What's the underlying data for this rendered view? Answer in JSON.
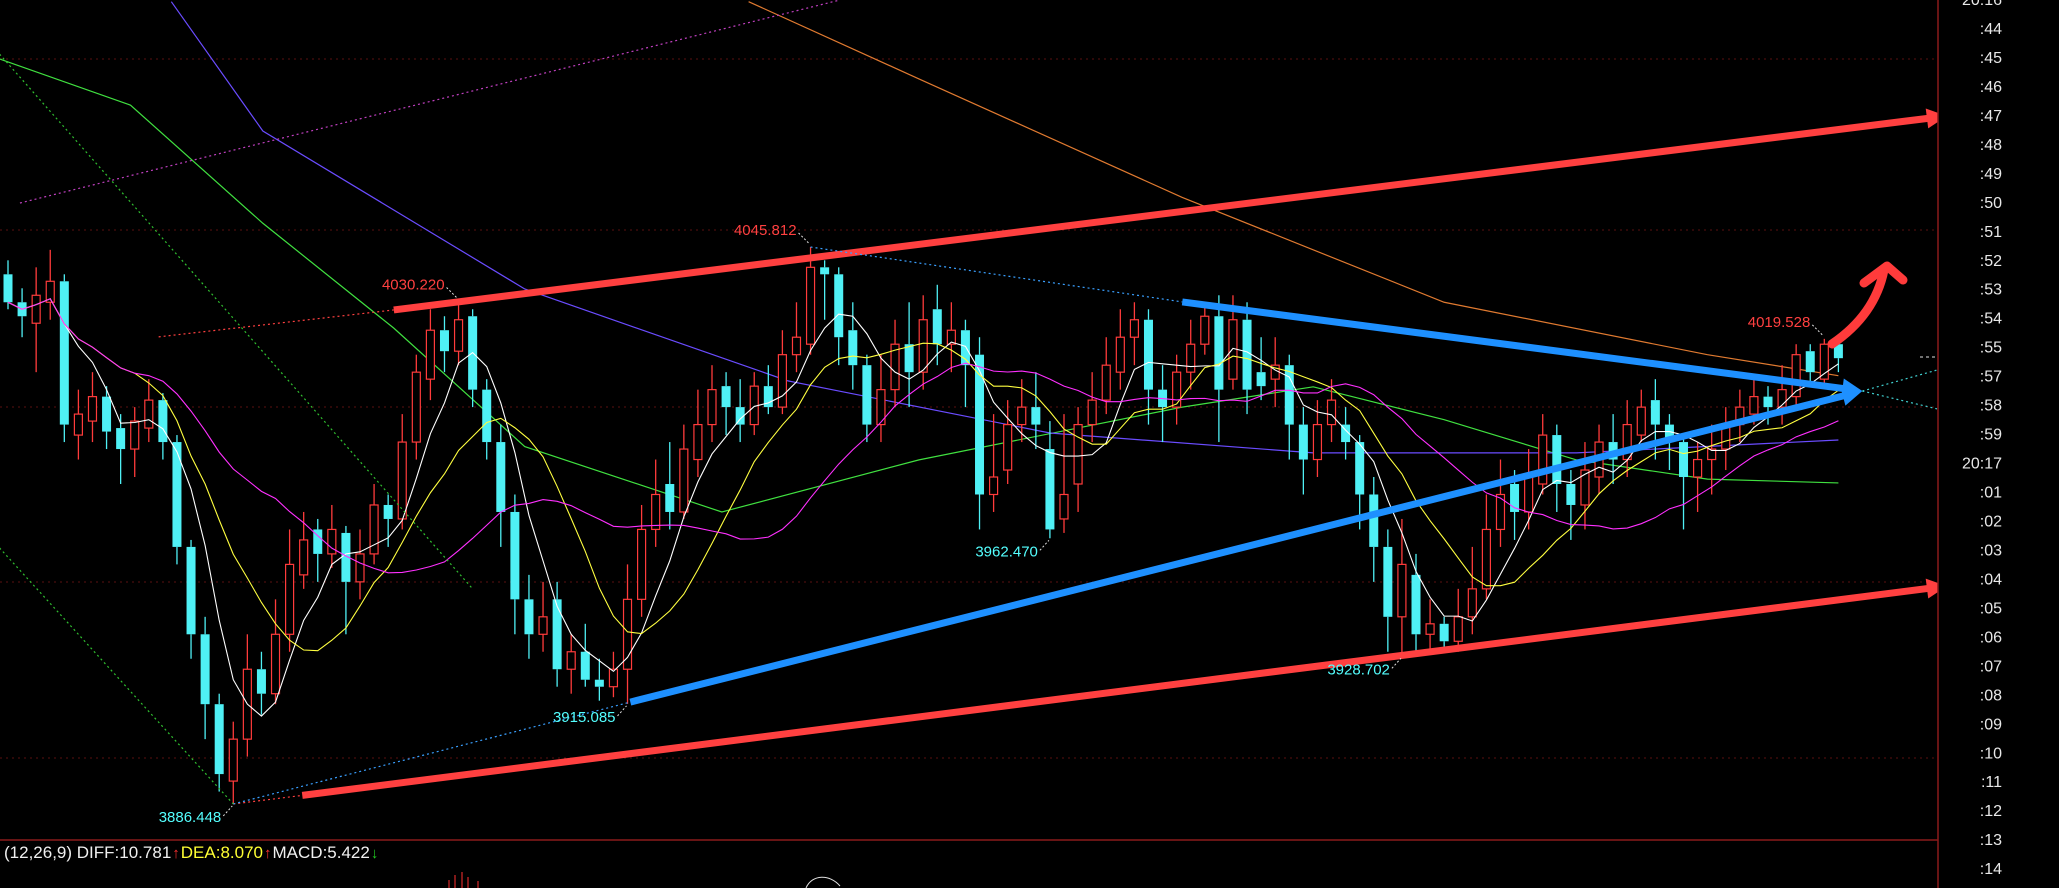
{
  "chart_data": {
    "type": "candlestick",
    "up_color": "#ff3b3b",
    "down_color": "#4ff0f5",
    "candles": [
      [
        4038,
        4042,
        4028,
        4030
      ],
      [
        4030,
        4034,
        4020,
        4026
      ],
      [
        4024,
        4040,
        4010,
        4032
      ],
      [
        4030,
        4045,
        4025,
        4036
      ],
      [
        4036,
        4038,
        3990,
        3995
      ],
      [
        3992,
        4005,
        3985,
        3998
      ],
      [
        3996,
        4010,
        3990,
        4003
      ],
      [
        4003,
        4006,
        3988,
        3993
      ],
      [
        3994,
        3998,
        3978,
        3988
      ],
      [
        3988,
        4000,
        3980,
        3996
      ],
      [
        3994,
        4008,
        3990,
        4002
      ],
      [
        4002,
        4004,
        3985,
        3990
      ],
      [
        3990,
        3992,
        3955,
        3960
      ],
      [
        3960,
        3962,
        3928,
        3935
      ],
      [
        3935,
        3940,
        3905,
        3915
      ],
      [
        3915,
        3918,
        3890,
        3895
      ],
      [
        3893,
        3910,
        3886.448,
        3905
      ],
      [
        3905,
        3935,
        3900,
        3925
      ],
      [
        3925,
        3930,
        3912,
        3918
      ],
      [
        3918,
        3945,
        3915,
        3935
      ],
      [
        3935,
        3965,
        3930,
        3955
      ],
      [
        3952,
        3970,
        3948,
        3962
      ],
      [
        3965,
        3968,
        3950,
        3958
      ],
      [
        3958,
        3972,
        3954,
        3965
      ],
      [
        3964,
        3966,
        3935,
        3950
      ],
      [
        3950,
        3965,
        3945,
        3958
      ],
      [
        3958,
        3978,
        3955,
        3972
      ],
      [
        3972,
        3975,
        3960,
        3968
      ],
      [
        3968,
        3998,
        3965,
        3990
      ],
      [
        3990,
        4015,
        3985,
        4010
      ],
      [
        4008,
        4028,
        4002,
        4022
      ],
      [
        4022,
        4026,
        4010,
        4016
      ],
      [
        4016,
        4030.22,
        4012,
        4025
      ],
      [
        4026,
        4028,
        4000,
        4005
      ],
      [
        4005,
        4008,
        3985,
        3990
      ],
      [
        3990,
        3995,
        3960,
        3970
      ],
      [
        3970,
        3975,
        3935,
        3945
      ],
      [
        3945,
        3952,
        3928,
        3935
      ],
      [
        3935,
        3950,
        3930,
        3940
      ],
      [
        3945,
        3950,
        3920,
        3925
      ],
      [
        3925,
        3935,
        3918,
        3930
      ],
      [
        3930,
        3938,
        3920,
        3922
      ],
      [
        3922,
        3928,
        3916,
        3920
      ],
      [
        3920,
        3930,
        3917,
        3925
      ],
      [
        3925,
        3955,
        3915.085,
        3945
      ],
      [
        3945,
        3972,
        3940,
        3965
      ],
      [
        3965,
        3985,
        3960,
        3975
      ],
      [
        3978,
        3990,
        3965,
        3970
      ],
      [
        3970,
        3995,
        3968,
        3988
      ],
      [
        3985,
        4005,
        3980,
        3995
      ],
      [
        3995,
        4012,
        3990,
        4005
      ],
      [
        4006,
        4010,
        3992,
        4000
      ],
      [
        4000,
        4008,
        3990,
        3995
      ],
      [
        3995,
        4010,
        3992,
        4006
      ],
      [
        4006,
        4012,
        3998,
        4000
      ],
      [
        4000,
        4022,
        3998,
        4015
      ],
      [
        4015,
        4030,
        4010,
        4020
      ],
      [
        4018,
        4045.812,
        4015,
        4040
      ],
      [
        4040,
        4042,
        4025,
        4038
      ],
      [
        4038,
        4040,
        4012,
        4020
      ],
      [
        4022,
        4030,
        4005,
        4012
      ],
      [
        4012,
        4015,
        3990,
        3995
      ],
      [
        3995,
        4015,
        3990,
        4005
      ],
      [
        4005,
        4025,
        4000,
        4018
      ],
      [
        4018,
        4030,
        4000,
        4010
      ],
      [
        4010,
        4032,
        4005,
        4025
      ],
      [
        4028,
        4035,
        4012,
        4018
      ],
      [
        4018,
        4030,
        4010,
        4022
      ],
      [
        4022,
        4025,
        4000,
        4012
      ],
      [
        4015,
        4020,
        3965,
        3975
      ],
      [
        3975,
        3998,
        3970,
        3980
      ],
      [
        3982,
        4002,
        3978,
        3995
      ],
      [
        3995,
        4008,
        3990,
        4000
      ],
      [
        4000,
        4010,
        3988,
        3995
      ],
      [
        3988,
        3996,
        3962.47,
        3965
      ],
      [
        3968,
        3998,
        3964,
        3975
      ],
      [
        3978,
        4000,
        3970,
        3995
      ],
      [
        3995,
        4010,
        3990,
        4002
      ],
      [
        4002,
        4020,
        3998,
        4012
      ],
      [
        4010,
        4028,
        4005,
        4020
      ],
      [
        4020,
        4030,
        4012,
        4025
      ],
      [
        4025,
        4028,
        3995,
        4005
      ],
      [
        4005,
        4012,
        3990,
        4000
      ],
      [
        4000,
        4015,
        3995,
        4010
      ],
      [
        4010,
        4025,
        4005,
        4018
      ],
      [
        4018,
        4030,
        4015,
        4026
      ],
      [
        4026,
        4032,
        3990,
        4005
      ],
      [
        4008,
        4032,
        4005,
        4025
      ],
      [
        4025,
        4030,
        3998,
        4005
      ],
      [
        4010,
        4020,
        4002,
        4006
      ],
      [
        4008,
        4020,
        4000,
        4012
      ],
      [
        4012,
        4015,
        3985,
        3995
      ],
      [
        3995,
        4000,
        3975,
        3985
      ],
      [
        3985,
        4002,
        3980,
        3995
      ],
      [
        3995,
        4008,
        3990,
        4002
      ],
      [
        3995,
        4000,
        3985,
        3990
      ],
      [
        3990,
        3992,
        3965,
        3975
      ],
      [
        3975,
        3980,
        3950,
        3960
      ],
      [
        3960,
        3965,
        3930,
        3940
      ],
      [
        3940,
        3968,
        3928.702,
        3955
      ],
      [
        3952,
        3958,
        3930,
        3935
      ],
      [
        3935,
        3945,
        3930,
        3938
      ],
      [
        3938,
        3940,
        3930,
        3933
      ],
      [
        3933,
        3948,
        3930,
        3940
      ],
      [
        3940,
        3960,
        3935,
        3948
      ],
      [
        3948,
        3975,
        3945,
        3965
      ],
      [
        3965,
        3985,
        3960,
        3975
      ],
      [
        3978,
        3982,
        3962,
        3970
      ],
      [
        3970,
        3988,
        3965,
        3980
      ],
      [
        3978,
        3998,
        3975,
        3992
      ],
      [
        3992,
        3995,
        3970,
        3978
      ],
      [
        3978,
        3982,
        3962,
        3972
      ],
      [
        3972,
        3990,
        3965,
        3982
      ],
      [
        3980,
        3995,
        3975,
        3990
      ],
      [
        3990,
        3998,
        3978,
        3985
      ],
      [
        3985,
        4002,
        3980,
        3995
      ],
      [
        3992,
        4005,
        3990,
        4000
      ],
      [
        4002,
        4008,
        3985,
        3995
      ],
      [
        3995,
        3998,
        3982,
        3990
      ],
      [
        3990,
        3992,
        3965,
        3980
      ],
      [
        3980,
        3990,
        3970,
        3985
      ],
      [
        3985,
        3995,
        3975,
        3988
      ],
      [
        3988,
        4000,
        3982,
        3995
      ],
      [
        3995,
        4005,
        3990,
        4000
      ],
      [
        3998,
        4008,
        3995,
        4003
      ],
      [
        4003,
        4006,
        3995,
        4000
      ],
      [
        4000,
        4012,
        3995,
        4005
      ],
      [
        4003,
        4018,
        4000,
        4015
      ],
      [
        4016,
        4018,
        4006,
        4010
      ],
      [
        4008,
        4019.528,
        4006,
        4018
      ],
      [
        4018,
        4020,
        4010,
        4014
      ]
    ],
    "moving_averages": [
      {
        "period": 5,
        "color": "#ffffff"
      },
      {
        "period": 10,
        "color": "#ffff40"
      },
      {
        "period": 20,
        "color": "#ff30ff"
      }
    ],
    "long_lines": [
      {
        "color": "#40e040",
        "points": [
          [
            -0.6,
            4099.6
          ],
          [
            8.7,
            4086.4
          ],
          [
            18.1,
            4052.6
          ],
          [
            27.4,
            4022.6
          ],
          [
            36.7,
            3988.7
          ],
          [
            50.7,
            3970
          ],
          [
            64.7,
            3984.9
          ],
          [
            83.4,
            4000
          ],
          [
            92.7,
            4005.8
          ],
          [
            102,
            3996.4
          ],
          [
            111.4,
            3984.9
          ],
          [
            120.7,
            3979.4
          ],
          [
            130,
            3978.3
          ]
        ]
      },
      {
        "color": "#6a4cff",
        "points": [
          [
            11.6,
            4116
          ],
          [
            18.1,
            4079
          ],
          [
            36.7,
            4033.8
          ],
          [
            55.4,
            4007.5
          ],
          [
            74,
            3992.6
          ],
          [
            92.7,
            3986.9
          ],
          [
            111.4,
            3986.9
          ],
          [
            130,
            3990.6
          ]
        ]
      },
      {
        "color": "#e07a30",
        "points": [
          [
            52.6,
            4116
          ],
          [
            64.7,
            4093.9
          ],
          [
            83.4,
            4060
          ],
          [
            102,
            4030
          ],
          [
            120.7,
            4015
          ],
          [
            130,
            4009
          ]
        ]
      }
    ],
    "trendlines": [
      {
        "name": "upper-red-trendline",
        "color": "#ff4040",
        "style": "thick",
        "arrow": true,
        "from": [
          27.4,
          4027.8
        ],
        "to": [
          137.7,
          4083.3
        ]
      },
      {
        "name": "upper-red-guide",
        "color": "#ff4040",
        "style": "dotted",
        "arrow": false,
        "from": [
          10.7,
          4020.1
        ],
        "to": [
          27.4,
          4027.8
        ]
      },
      {
        "name": "lower-red-guide",
        "color": "#ff4040",
        "style": "dotted",
        "arrow": false,
        "from": [
          16,
          3886.448
        ],
        "to": [
          20.9,
          3888.9
        ]
      },
      {
        "name": "lower-red-trendline",
        "color": "#ff4040",
        "style": "thick",
        "arrow": true,
        "from": [
          20.9,
          3888.9
        ],
        "to": [
          137.7,
          3948.8
        ]
      },
      {
        "name": "upper-blue-guide",
        "color": "#3aa0ff",
        "style": "dotted",
        "arrow": false,
        "from": [
          57,
          4045.812
        ],
        "to": [
          83.4,
          4030.1
        ]
      },
      {
        "name": "upper-blue-trendline",
        "color": "#1e90ff",
        "style": "thick",
        "arrow": true,
        "from": [
          83.4,
          4030.1
        ],
        "to": [
          131.7,
          4004.6
        ]
      },
      {
        "name": "lower-blue-guide",
        "color": "#3aa0ff",
        "style": "dotted",
        "arrow": false,
        "from": [
          16,
          3886.448
        ],
        "to": [
          44.2,
          3915.6
        ]
      },
      {
        "name": "lower-blue-trendline",
        "color": "#1e90ff",
        "style": "thick",
        "arrow": true,
        "from": [
          44.2,
          3915.6
        ],
        "to": [
          131.7,
          4004.6
        ]
      },
      {
        "name": "magenta-channel-line",
        "color": "#c040c0",
        "style": "dotted",
        "arrow": false,
        "from": [
          0.85,
          4058.4
        ],
        "to": [
          59.1,
          4116.5
        ]
      },
      {
        "name": "green-guide-upper",
        "color": "#30c030",
        "style": "dotted",
        "arrow": false,
        "from": [
          -0.6,
          4101
        ],
        "to": [
          33,
          3948
        ]
      },
      {
        "name": "green-guide-lower",
        "color": "#30c030",
        "style": "dotted",
        "arrow": false,
        "from": [
          -0.6,
          3959.7
        ],
        "to": [
          16,
          3886.448
        ]
      },
      {
        "name": "apex-extension-upper",
        "color": "#40d0d0",
        "style": "dotted",
        "arrow": false,
        "from": [
          131.7,
          4004.6
        ],
        "to": [
          137,
          4010.6
        ]
      },
      {
        "name": "apex-extension-lower",
        "color": "#40d0d0",
        "style": "dotted",
        "arrow": false,
        "from": [
          131.7,
          4004.6
        ],
        "to": [
          137,
          3999.5
        ]
      }
    ],
    "annotations": [
      {
        "text": "3886.448",
        "index": 16,
        "price": 3886.448,
        "side": "low",
        "color": "#54ffff"
      },
      {
        "text": "3915.085",
        "index": 44,
        "price": 3915.085,
        "side": "low",
        "color": "#54ffff"
      },
      {
        "text": "4030.220",
        "index": 32,
        "price": 4030.22,
        "side": "high",
        "color": "#ff4040"
      },
      {
        "text": "4045.812",
        "index": 57,
        "price": 4045.812,
        "side": "high",
        "color": "#ff4040"
      },
      {
        "text": "3962.470",
        "index": 74,
        "price": 3962.47,
        "side": "low",
        "color": "#54ffff"
      },
      {
        "text": "3928.702",
        "index": 99,
        "price": 3928.702,
        "side": "low",
        "color": "#54ffff"
      },
      {
        "text": "4019.528",
        "index": 129,
        "price": 4019.528,
        "side": "high",
        "color": "#ff4040"
      }
    ],
    "y_axis_labels": [
      "20:16",
      ":44",
      ":45",
      ":46",
      ":47",
      ":48",
      ":49",
      ":50",
      ":51",
      ":52",
      ":53",
      ":54",
      ":55",
      ":57",
      ":58",
      ":59",
      "20:17",
      ":01",
      ":02",
      ":03",
      ":04",
      ":05",
      ":06",
      ":07",
      ":08",
      ":09",
      ":10",
      ":11",
      ":12",
      ":13",
      ":14"
    ],
    "grid": true
  },
  "macd": {
    "params": "(12,26,9)",
    "diff": "DIFF:10.781",
    "diff_arrow": "↑",
    "dea": "DEA:8.070",
    "dea_arrow": "↑",
    "macd": "MACD:5.422",
    "macd_arrow": "↓"
  }
}
